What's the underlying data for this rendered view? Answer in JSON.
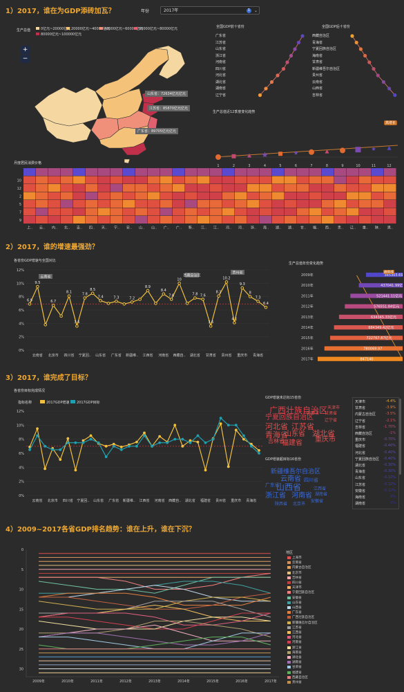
{
  "sections": {
    "s1": "1）2017，谁在为GDP添砖加瓦？",
    "s2": "2）2017，谁的增速最强劲？",
    "s3": "3）2017，谁完成了目标？",
    "s4": "4）2009~2017各省GDP排名趋势：谁在上升，谁在下沉？"
  },
  "year_control": {
    "label": "年份",
    "value": "2017年",
    "badge": "1"
  },
  "map": {
    "legend_title": "生产总值",
    "legend": [
      {
        "label": "0亿元~20000亿元",
        "color": "#f5d7a1"
      },
      {
        "label": "20000亿元~40000亿元",
        "color": "#f5c27a"
      },
      {
        "label": "40000亿元~60000亿元",
        "color": "#f0907a"
      },
      {
        "label": "60000亿元~80000亿元",
        "color": "#e06070"
      },
      {
        "label": "80000亿元~100000亿元",
        "color": "#c0304a"
      }
    ],
    "zoom_in": "+",
    "zoom_out": "−",
    "callouts": [
      "山东省：72634亿元亿元",
      "江苏省：85870亿元亿元",
      "广东省：89705亿元亿元"
    ]
  },
  "top10_left": {
    "title": "全国GDP前十省份",
    "items": [
      "广东省",
      "江苏省",
      "山东省",
      "浙江省",
      "河南省",
      "四川省",
      "河北省",
      "湖北省",
      "湖南省",
      "辽宁省"
    ]
  },
  "bottom10_right": {
    "title": "全国GDP后十省份",
    "items": [
      "西藏自治区",
      "青海省",
      "宁夏回族自治区",
      "海南省",
      "甘肃省",
      "新疆维吾尔自治区",
      "贵州省",
      "云南省",
      "山西省",
      "吉林省"
    ]
  },
  "monthly": {
    "title": "生产总值近12季度变化趋势",
    "x": [
      "1",
      "2",
      "3",
      "4",
      "5",
      "6",
      "7",
      "8",
      "9",
      "10",
      "11",
      "12"
    ],
    "highlight_label": "高增长"
  },
  "heatmap": {
    "title": "月度居民消费价格",
    "rows": [
      "10",
      "12",
      "2",
      "5",
      "7",
      "9"
    ],
    "cols": [
      "上..",
      "云..",
      "内..",
      "北..",
      "吉..",
      "四..",
      "天..",
      "宁..",
      "安..",
      "山..",
      "山..",
      "广..",
      "广..",
      "新..",
      "江..",
      "江..",
      "河..",
      "河..",
      "浙..",
      "海..",
      "湖..",
      "湖..",
      "甘..",
      "福..",
      "西..",
      "贵..",
      "辽..",
      "重..",
      "陕..",
      "黑.."
    ]
  },
  "growth": {
    "title": "各省份GDP增速与全国对比",
    "callouts": [
      "云南省",
      "西藏自治区",
      "贵州省"
    ],
    "chart_data": {
      "type": "line",
      "ylabel": "",
      "ylim": [
        0,
        12
      ],
      "yticks": [
        "0%",
        "2%",
        "4%",
        "6%",
        "8%",
        "10%",
        "12%"
      ],
      "x": [
        "",
        "云南省",
        "",
        "北京市",
        "",
        "四川省",
        "",
        "宁夏回..",
        "",
        "山东省",
        "",
        "广东省",
        "",
        "新疆维..",
        "",
        "江西省",
        "",
        "河南省",
        "",
        "西藏自..",
        "",
        "湖北省",
        "",
        "甘肃省",
        "",
        "贵州省",
        "",
        "重庆市",
        "",
        "青海省",
        ""
      ],
      "values": [
        6.9,
        9.5,
        3.8,
        6.7,
        5.1,
        8.1,
        3.6,
        7.8,
        8.5,
        7.4,
        7.0,
        7.3,
        6.9,
        7.2,
        7.6,
        8.9,
        7.0,
        8.4,
        7.6,
        10.0,
        7.0,
        7.8,
        7.6,
        3.6,
        8.1,
        10.2,
        4.1,
        9.3,
        8.0,
        7.3,
        6.4
      ],
      "labels": [
        "6.9",
        "9.5",
        "",
        "6.7",
        "",
        "8.1",
        "3.6",
        "7.8",
        "8.5",
        "7.4",
        "",
        "7.3",
        "",
        "7.2",
        "",
        "8.9",
        "",
        "8.4",
        "7.6",
        "10",
        "",
        "7.8",
        "7.6",
        "3.6",
        "8.1",
        "10.2",
        "4.1",
        "9.3",
        "8",
        "7.3",
        "6.4"
      ],
      "national": 6.9
    }
  },
  "gdp_bars": {
    "title": "生产总值年份变化趋势",
    "badge": "趋势线",
    "chart_data": {
      "type": "bar",
      "categories": [
        "2009年",
        "2010年",
        "2011年",
        "2012年",
        "2013年",
        "2014年",
        "2015年",
        "2016年",
        "2017年"
      ],
      "values": [
        365303.69,
        437041.99,
        521441.11,
        576551.84,
        634345.33,
        684349.42,
        722767.87,
        780069.97,
        847140
      ],
      "labels": [
        "365303.69亿元",
        "437041.99亿元",
        "521441.11亿元",
        "576551.84亿元",
        "634345.33亿元",
        "684349.42亿元",
        "722767.87亿元",
        "780069.97",
        "847140"
      ]
    }
  },
  "target": {
    "title": "各省份目标完成情况",
    "legend_label": "指标名称",
    "series_names": [
      "2017GDP增速",
      "2017GDP目标"
    ],
    "chart_data": {
      "type": "line",
      "ylim": [
        0,
        12
      ],
      "yticks": [
        "0%",
        "2%",
        "4%",
        "6%",
        "8%",
        "10%",
        "12%"
      ],
      "x": [
        "",
        "云南省",
        "",
        "北京市",
        "",
        "四川省",
        "",
        "宁夏回..",
        "",
        "山东省",
        "",
        "广东省",
        "",
        "新疆维..",
        "",
        "江西省",
        "",
        "河南省",
        "",
        "西藏自..",
        "",
        "湖北省",
        "",
        "福建省",
        "",
        "贵州省",
        "",
        "重庆市",
        "",
        "青海省",
        ""
      ],
      "series": [
        {
          "name": "2017GDP增速",
          "values": [
            6.9,
            9.5,
            3.8,
            6.7,
            5.1,
            8.1,
            3.6,
            7.8,
            8.5,
            7.4,
            7.0,
            7.3,
            6.9,
            7.2,
            7.6,
            8.9,
            7.0,
            8.4,
            7.6,
            10.0,
            7.0,
            7.8,
            7.6,
            3.6,
            8.1,
            10.2,
            4.1,
            9.3,
            8.0,
            7.3,
            6.4
          ]
        },
        {
          "name": "2017GDP目标",
          "values": [
            6.5,
            8.5,
            7.0,
            6.5,
            6.5,
            7.5,
            7.5,
            7.5,
            8.0,
            7.5,
            5.5,
            7.0,
            6.5,
            7.0,
            7.0,
            8.5,
            7.0,
            7.5,
            7.5,
            8.0,
            8.0,
            7.5,
            8.5,
            7.5,
            8.0,
            11.0,
            10.0,
            10.0,
            8.5,
            7.0,
            6.0
          ]
        }
      ]
    }
  },
  "cloud_top": {
    "title": "GDP增速未达标15省份",
    "words": [
      "广西壮族自治区",
      "宁夏回族自治区",
      "河北省",
      "江苏省",
      "辽宁省",
      "青海省",
      "湖北省",
      "山东省",
      "重庆市",
      "吉林省",
      "福建省",
      "天津市",
      "甘肃省",
      "内蒙古"
    ]
  },
  "cloud_bottom": {
    "title": "GDP增速超目标16省份",
    "words": [
      "新疆维吾尔自治区",
      "云南省",
      "四川省",
      "广东省",
      "山西省",
      "浙江省",
      "河南省",
      "江西省",
      "湖南省",
      "陕西省",
      "北京市",
      "安徽省"
    ]
  },
  "diff_list": {
    "items": [
      {
        "name": "天津市",
        "value": "-4.4%",
        "color": "#f0a830"
      },
      {
        "name": "甘肃省",
        "value": "-3.9%",
        "color": "#f08040"
      },
      {
        "name": "内蒙古自治区",
        "value": "-3.5%",
        "color": "#e06050"
      },
      {
        "name": "辽宁省",
        "value": "-2.1%",
        "color": "#e05060"
      },
      {
        "name": "吉林省",
        "value": "-1.70%",
        "color": "#c84a70"
      },
      {
        "name": "西藏自治区",
        "value": "-1%",
        "color": "#b04a80"
      },
      {
        "name": "重庆市",
        "value": "-0.70%",
        "color": "#7a4ab0"
      },
      {
        "name": "福建省",
        "value": "-0.40%",
        "color": "#6a4ac0"
      },
      {
        "name": "河北省",
        "value": "-0.40%",
        "color": "#5a48c8"
      },
      {
        "name": "宁夏回族自治区",
        "value": "-0.40%",
        "color": "#5048d0"
      },
      {
        "name": "湖北省",
        "value": "-0.30%",
        "color": "#4848d8"
      },
      {
        "name": "青海省",
        "value": "-0.30%",
        "color": "#4040d8"
      },
      {
        "name": "山东省",
        "value": "-0.10%",
        "color": "#3a3ad8"
      },
      {
        "name": "江苏省",
        "value": "-0.10%",
        "color": "#3434d4"
      },
      {
        "name": "安徽省",
        "value": "-0.10%",
        "color": "#3030d0"
      },
      {
        "name": "海南省",
        "value": "0%",
        "color": "#2c2cc8"
      },
      {
        "name": "湖南省",
        "value": "0%",
        "color": "#2828c0"
      }
    ]
  },
  "rank": {
    "legend_title": "地区",
    "yticks": [
      "0",
      "5",
      "10",
      "15",
      "20",
      "25",
      "30"
    ],
    "chart_data": {
      "type": "line",
      "x": [
        "2009年",
        "2010年",
        "2011年",
        "2012年",
        "2013年",
        "2014年",
        "2015年",
        "2016年",
        "2017年"
      ],
      "ylim": [
        0,
        32
      ],
      "series": [
        {
          "name": "上海市",
          "color": "#e05050"
        },
        {
          "name": "云南省",
          "color": "#d09060"
        },
        {
          "name": "内蒙古自治区",
          "color": "#e0a060"
        },
        {
          "name": "北京市",
          "color": "#e0c080"
        },
        {
          "name": "吉林省",
          "color": "#f0a8a8"
        },
        {
          "name": "四川省",
          "color": "#c04040"
        },
        {
          "name": "天津市",
          "color": "#f0b070"
        },
        {
          "name": "宁夏回族自治区",
          "color": "#f08080"
        },
        {
          "name": "安徽省",
          "color": "#70c0a0"
        },
        {
          "name": "山东省",
          "color": "#40a0a0"
        },
        {
          "name": "山西省",
          "color": "#c0d8e8"
        },
        {
          "name": "广东省",
          "color": "#e08040"
        },
        {
          "name": "广西壮族自治区",
          "color": "#c06040"
        },
        {
          "name": "新疆维吾尔自治区",
          "color": "#d0b050"
        },
        {
          "name": "江苏省",
          "color": "#a0a0a0"
        },
        {
          "name": "江西省",
          "color": "#f0c060"
        },
        {
          "name": "河北省",
          "color": "#e06080"
        },
        {
          "name": "河南省",
          "color": "#d04050"
        },
        {
          "name": "浙江省",
          "color": "#f0e0a0"
        },
        {
          "name": "海南省",
          "color": "#b0a070"
        },
        {
          "name": "湖北省",
          "color": "#f0b0c0"
        },
        {
          "name": "湖南省",
          "color": "#a070b0"
        },
        {
          "name": "甘肃省",
          "color": "#a0c8e0"
        },
        {
          "name": "福建省",
          "color": "#60b060"
        },
        {
          "name": "西藏自治区",
          "color": "#e08080"
        },
        {
          "name": "贵州省",
          "color": "#c09050"
        }
      ]
    }
  }
}
